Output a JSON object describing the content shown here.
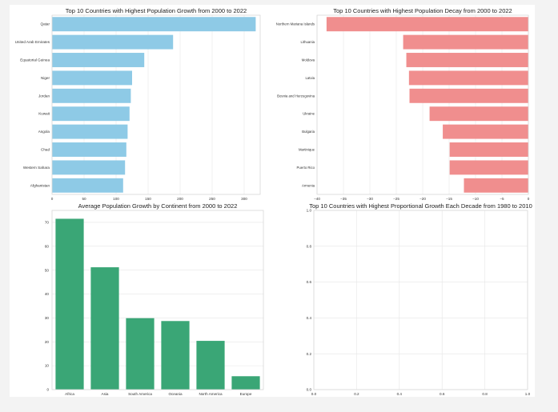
{
  "chart_data": [
    {
      "type": "bar",
      "orientation": "horizontal",
      "title": "Top 10 Countries with Highest Population Growth from 2000 to 2022",
      "categories": [
        "Qatar",
        "United Arab Emirates",
        "Equatorial Guinea",
        "Niger",
        "Jordan",
        "Kuwait",
        "Angola",
        "Chad",
        "Western Sahara",
        "Afghanistan"
      ],
      "values": [
        318,
        189,
        144,
        125,
        123,
        121,
        118,
        116,
        114,
        111
      ],
      "xlim": [
        0,
        325
      ],
      "xticks": [
        0,
        50,
        100,
        150,
        200,
        250,
        300
      ],
      "color": "#8ecae6",
      "grid": true,
      "xlabel": "",
      "ylabel": ""
    },
    {
      "type": "bar",
      "orientation": "horizontal",
      "title": "Top 10 Countries with Highest Population Decay from 2000 to 2022",
      "categories": [
        "Northern Mariana Islands",
        "Lithuania",
        "Moldova",
        "Latvia",
        "Bosnia and Herzegovina",
        "Ukraine",
        "Bulgaria",
        "Martinique",
        "Puerto Rico",
        "Armenia"
      ],
      "values": [
        -38.2,
        -23.7,
        -23.1,
        -22.6,
        -22.5,
        -18.7,
        -16.2,
        -14.9,
        -14.9,
        -12.2
      ],
      "xlim": [
        -40,
        0
      ],
      "xticks": [
        -40,
        -35,
        -30,
        -25,
        -20,
        -15,
        -10,
        -5,
        0
      ],
      "color": "#f08e8e",
      "grid": true,
      "xlabel": "",
      "ylabel": ""
    },
    {
      "type": "bar",
      "orientation": "vertical",
      "title": "Average Population Growth by Continent from 2000 to 2022",
      "categories": [
        "Africa",
        "Asia",
        "South America",
        "Oceania",
        "North America",
        "Europe"
      ],
      "values": [
        71.5,
        51.2,
        29.9,
        28.7,
        20.4,
        5.6
      ],
      "ylim": [
        0,
        75
      ],
      "yticks": [
        0,
        10,
        20,
        30,
        40,
        50,
        60,
        70
      ],
      "color": "#3aa676",
      "grid": true,
      "xlabel": "",
      "ylabel": ""
    },
    {
      "type": "line",
      "title": "Top 10 Countries with Highest Proportional Growth Each Decade from 1980 to 2010",
      "series": [],
      "xlim": [
        0,
        1
      ],
      "ylim": [
        0,
        1
      ],
      "xticks": [
        "0.0",
        "0.2",
        "0.4",
        "0.6",
        "0.8",
        "1.0"
      ],
      "yticks": [
        "0.0",
        "0.2",
        "0.4",
        "0.6",
        "0.8",
        "1.0"
      ],
      "grid": true,
      "xlabel": "",
      "ylabel": ""
    }
  ]
}
